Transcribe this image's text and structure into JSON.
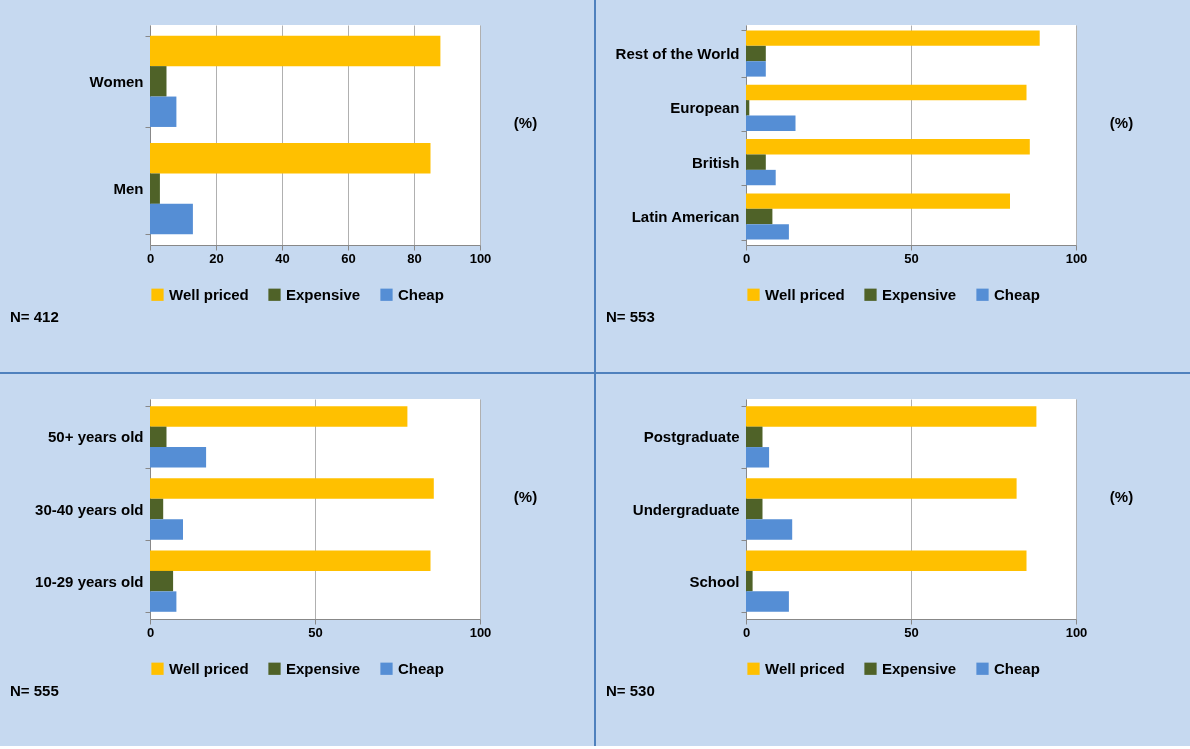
{
  "chart_data": [
    {
      "type": "bar",
      "orientation": "horizontal",
      "categories": [
        "Women",
        "Men"
      ],
      "series": [
        {
          "name": "Well priced",
          "color": "#ffc000",
          "values": [
            88,
            85
          ]
        },
        {
          "name": "Expensive",
          "color": "#4f6228",
          "values": [
            5,
            3
          ]
        },
        {
          "name": "Cheap",
          "color": "#558ed5",
          "values": [
            8,
            13
          ]
        }
      ],
      "xlim": [
        0,
        100
      ],
      "xticks": [
        0,
        20,
        40,
        60,
        80,
        100
      ],
      "xlabel": "(%)",
      "grid": "x",
      "legend": "bottom",
      "annotations": [
        "N= 412"
      ]
    },
    {
      "type": "bar",
      "orientation": "horizontal",
      "categories": [
        "Rest of the World",
        "European",
        "British",
        "Latin American"
      ],
      "series": [
        {
          "name": "Well priced",
          "color": "#ffc000",
          "values": [
            89,
            85,
            86,
            80
          ]
        },
        {
          "name": "Expensive",
          "color": "#4f6228",
          "values": [
            6,
            1,
            6,
            8
          ]
        },
        {
          "name": "Cheap",
          "color": "#558ed5",
          "values": [
            6,
            15,
            9,
            13
          ]
        }
      ],
      "xlim": [
        0,
        100
      ],
      "xticks": [
        0,
        50,
        100
      ],
      "xlabel": "(%)",
      "grid": "x",
      "legend": "bottom",
      "annotations": [
        "N= 553"
      ]
    },
    {
      "type": "bar",
      "orientation": "horizontal",
      "categories": [
        "50+ years old",
        "30-40 years old",
        "10-29 years old"
      ],
      "series": [
        {
          "name": "Well priced",
          "color": "#ffc000",
          "values": [
            78,
            86,
            85
          ]
        },
        {
          "name": "Expensive",
          "color": "#4f6228",
          "values": [
            5,
            4,
            7
          ]
        },
        {
          "name": "Cheap",
          "color": "#558ed5",
          "values": [
            17,
            10,
            8
          ]
        }
      ],
      "xlim": [
        0,
        100
      ],
      "xticks": [
        0,
        50,
        100
      ],
      "xlabel": "(%)",
      "grid": "x",
      "legend": "bottom",
      "annotations": [
        "N= 555"
      ]
    },
    {
      "type": "bar",
      "orientation": "horizontal",
      "categories": [
        "Postgraduate",
        "Undergraduate",
        "School"
      ],
      "series": [
        {
          "name": "Well priced",
          "color": "#ffc000",
          "values": [
            88,
            82,
            85
          ]
        },
        {
          "name": "Expensive",
          "color": "#4f6228",
          "values": [
            5,
            5,
            2
          ]
        },
        {
          "name": "Cheap",
          "color": "#558ed5",
          "values": [
            7,
            14,
            13
          ]
        }
      ],
      "xlim": [
        0,
        100
      ],
      "xticks": [
        0,
        50,
        100
      ],
      "xlabel": "(%)",
      "grid": "x",
      "legend": "bottom",
      "annotations": [
        "N= 530"
      ]
    }
  ]
}
